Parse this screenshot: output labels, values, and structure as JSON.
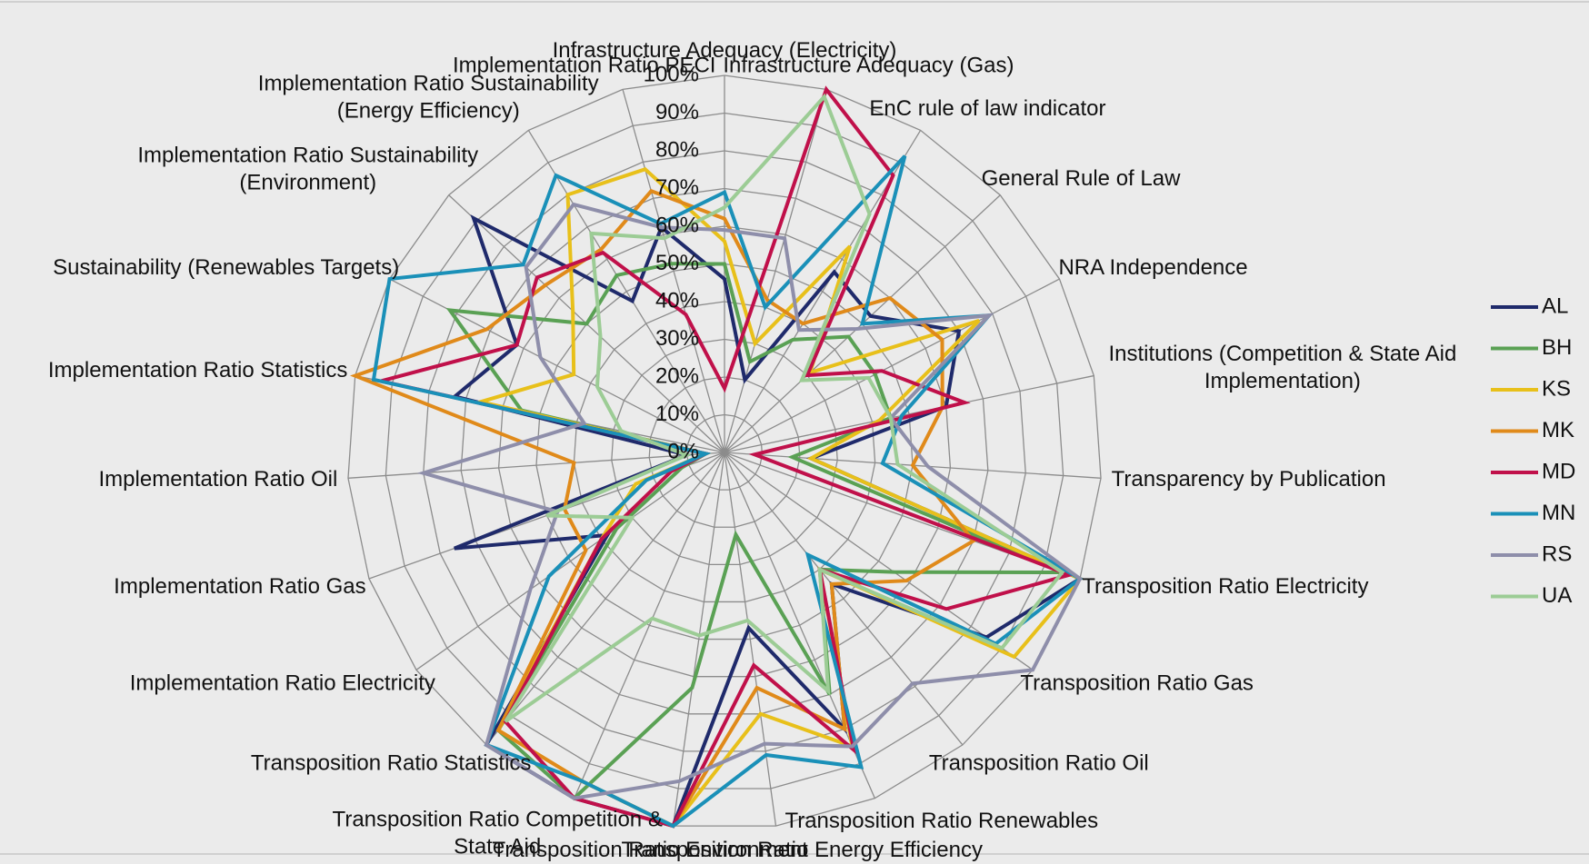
{
  "chart_data": {
    "type": "radar",
    "categories": [
      "Infrastructure Adequacy (Electricity)",
      "Infrastructure Adequacy (Gas)",
      "EnC rule of law indicator",
      "General Rule of Law",
      "NRA Independence",
      "Institutions (Competition & State Aid Implementation)",
      "Transparency by Publication",
      "Transposition Ratio Electricity",
      "Transposition Ratio Gas",
      "Transposition Ratio Oil",
      "Transposition Ratio Renewables",
      "Transposition Ratio Energy Efficiency",
      "Transposition Ratio Environment",
      "Transposition Ratio Competition & State Aid",
      "Transposition Ratio Statistics",
      "Implementation Ratio Electricity",
      "Implementation Ratio Gas",
      "Implementation Ratio Oil",
      "Implementation Ratio Statistics",
      "Sustainability (Renewables Targets)",
      "Implementation Ratio Sustainability (Environment)",
      "Implementation Ratio Sustainability (Energy Efficiency)",
      "Implementation Ratio PECI"
    ],
    "series": [
      {
        "name": "AL",
        "color": "#1f2a6b",
        "values": [
          46,
          20,
          56,
          53,
          70,
          60,
          23,
          100,
          85,
          45,
          80,
          47,
          100,
          100,
          100,
          38,
          76,
          10,
          73,
          62,
          91,
          47,
          62
        ]
      },
      {
        "name": "BH",
        "color": "#5aa154",
        "values": [
          50,
          25,
          35,
          45,
          45,
          45,
          18,
          95,
          55,
          40,
          70,
          22,
          63,
          100,
          95,
          35,
          12,
          5,
          55,
          82,
          50,
          55,
          52
        ]
      },
      {
        "name": "KS",
        "color": "#e8c01a",
        "values": [
          56,
          30,
          64,
          31,
          76,
          42,
          23,
          100,
          94,
          40,
          85,
          70,
          100,
          95,
          95,
          40,
          25,
          5,
          66,
          45,
          55,
          80,
          78
        ]
      },
      {
        "name": "MK",
        "color": "#e08a1a",
        "values": [
          62,
          42,
          40,
          60,
          65,
          59,
          50,
          70,
          59,
          45,
          80,
          63,
          100,
          95,
          95,
          45,
          45,
          40,
          100,
          71,
          65,
          63,
          72
        ]
      },
      {
        "name": "MD",
        "color": "#c0104a",
        "values": [
          17,
          100,
          86,
          30,
          47,
          65,
          8,
          97,
          72,
          40,
          86,
          57,
          100,
          100,
          92,
          40,
          15,
          5,
          93,
          62,
          68,
          62,
          38
        ]
      },
      {
        "name": "MN",
        "color": "#1a90b8",
        "values": [
          69,
          40,
          92,
          50,
          79,
          48,
          42,
          100,
          88,
          35,
          91,
          81,
          100,
          95,
          100,
          57,
          22,
          5,
          95,
          100,
          73,
          86,
          63
        ]
      },
      {
        "name": "RS",
        "color": "#8e8eaa",
        "values": [
          59,
          59,
          38,
          48,
          79,
          45,
          54,
          100,
          100,
          79,
          85,
          78,
          88,
          100,
          100,
          63,
          47,
          80,
          38,
          55,
          72,
          77,
          62
        ]
      },
      {
        "name": "UA",
        "color": "#9ccc95",
        "values": [
          65,
          98,
          74,
          28,
          43,
          45,
          46,
          95,
          90,
          40,
          69,
          45,
          49,
          48,
          92,
          30,
          50,
          10,
          28,
          38,
          45,
          68,
          59
        ]
      }
    ],
    "ylim": [
      0,
      100
    ],
    "yticks": [
      {
        "value": 0,
        "label": "0%"
      },
      {
        "value": 10,
        "label": "10%"
      },
      {
        "value": 20,
        "label": "20%"
      },
      {
        "value": 30,
        "label": "30%"
      },
      {
        "value": 40,
        "label": "40%"
      },
      {
        "value": 50,
        "label": "50%"
      },
      {
        "value": 60,
        "label": "60%"
      },
      {
        "value": 70,
        "label": "70%"
      },
      {
        "value": 80,
        "label": "80%"
      },
      {
        "value": 90,
        "label": "90%"
      },
      {
        "value": 100,
        "label": "100%"
      }
    ],
    "grid": true,
    "legend": "right"
  }
}
